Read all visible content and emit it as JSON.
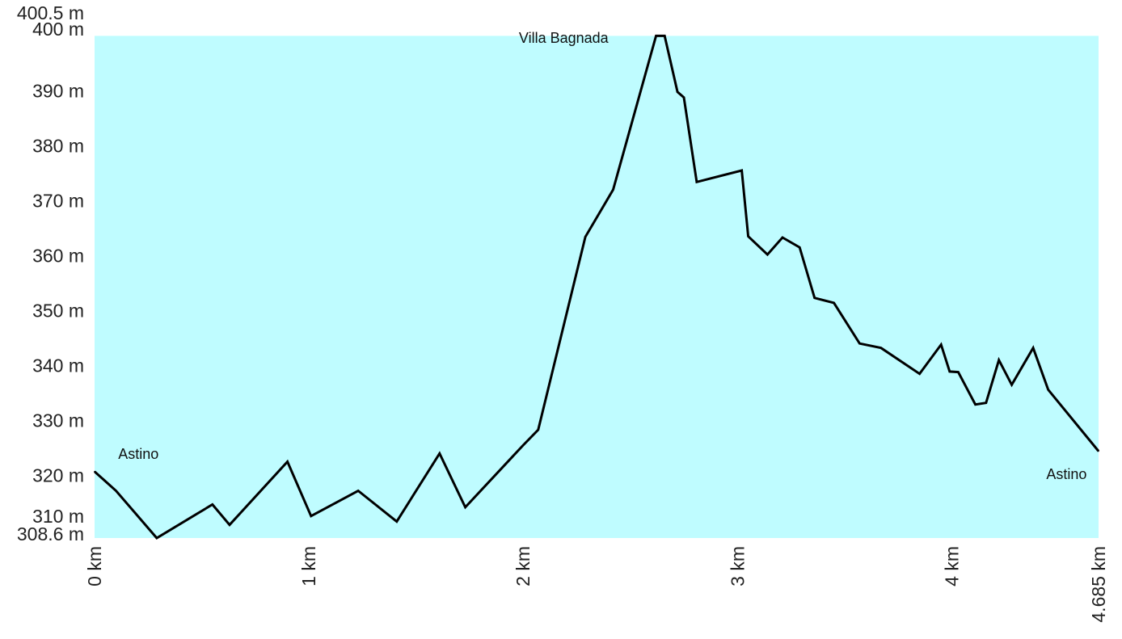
{
  "chart_data": {
    "type": "area",
    "title": "",
    "xlabel": "",
    "ylabel": "",
    "xlim": [
      0,
      4.685
    ],
    "ylim": [
      308.6,
      400.5
    ],
    "colors": {
      "fill": "#bffcff",
      "line": "#000000",
      "text": "#222222"
    },
    "y_ticks": [
      {
        "value": 400.5,
        "label": "400.5 m"
      },
      {
        "value": 400,
        "label": "400 m"
      },
      {
        "value": 390,
        "label": "390 m"
      },
      {
        "value": 380,
        "label": "380 m"
      },
      {
        "value": 370,
        "label": "370 m"
      },
      {
        "value": 360,
        "label": "360 m"
      },
      {
        "value": 350,
        "label": "350 m"
      },
      {
        "value": 340,
        "label": "340 m"
      },
      {
        "value": 330,
        "label": "330 m"
      },
      {
        "value": 320,
        "label": "320 m"
      },
      {
        "value": 310,
        "label": "310 m"
      },
      {
        "value": 308.6,
        "label": "308.6 m"
      }
    ],
    "x_ticks": [
      {
        "value": 0,
        "label": "0 km"
      },
      {
        "value": 1,
        "label": "1 km"
      },
      {
        "value": 2,
        "label": "2 km"
      },
      {
        "value": 3,
        "label": "3 km"
      },
      {
        "value": 4,
        "label": "4 km"
      },
      {
        "value": 4.685,
        "label": "4.685 km"
      }
    ],
    "annotations": [
      {
        "text": "Astino",
        "x": 0.11,
        "y": 323,
        "anchor": "start"
      },
      {
        "text": "Villa Bagnada",
        "x": 1.98,
        "y": 398.7,
        "anchor": "start"
      },
      {
        "text": "Astino",
        "x": 4.63,
        "y": 319.3,
        "anchor": "end"
      }
    ],
    "series": [
      {
        "points": [
          [
            0,
            320.7
          ],
          [
            0.1,
            317.2
          ],
          [
            0.29,
            308.6
          ],
          [
            0.55,
            314.7
          ],
          [
            0.63,
            311
          ],
          [
            0.9,
            322.5
          ],
          [
            1.01,
            312.6
          ],
          [
            1.23,
            317.2
          ],
          [
            1.41,
            311.6
          ],
          [
            1.61,
            324
          ],
          [
            1.73,
            314.2
          ],
          [
            2.0,
            325.5
          ],
          [
            2.07,
            328.3
          ],
          [
            2.29,
            363.4
          ],
          [
            2.42,
            372
          ],
          [
            2.62,
            400
          ],
          [
            2.66,
            400
          ],
          [
            2.72,
            389.8
          ],
          [
            2.75,
            388.8
          ],
          [
            2.81,
            373.4
          ],
          [
            3.02,
            375.5
          ],
          [
            3.05,
            363.5
          ],
          [
            3.14,
            360.2
          ],
          [
            3.21,
            363.3
          ],
          [
            3.29,
            361.5
          ],
          [
            3.36,
            352.3
          ],
          [
            3.45,
            351.4
          ],
          [
            3.57,
            344
          ],
          [
            3.67,
            343.2
          ],
          [
            3.85,
            338.5
          ],
          [
            3.95,
            343.8
          ],
          [
            3.99,
            338.9
          ],
          [
            4.03,
            338.8
          ],
          [
            4.11,
            332.9
          ],
          [
            4.16,
            333.2
          ],
          [
            4.22,
            341
          ],
          [
            4.28,
            336.5
          ],
          [
            4.38,
            343.2
          ],
          [
            4.45,
            335.6
          ],
          [
            4.685,
            324.4
          ]
        ]
      }
    ]
  }
}
